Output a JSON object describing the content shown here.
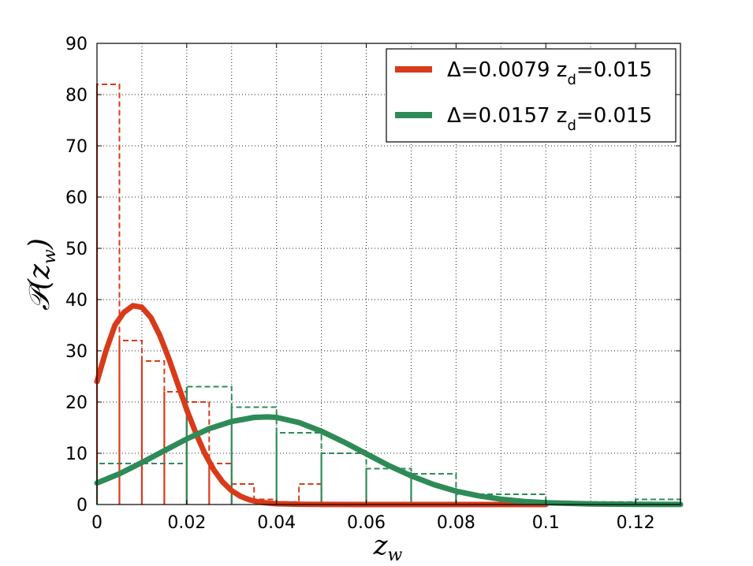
{
  "chart_data": {
    "type": "line",
    "title": "",
    "xlabel": "z",
    "xlabel_sub": "w",
    "ylabel_prefix": "𝒫(",
    "ylabel_var": "z",
    "ylabel_sub": "w",
    "ylabel_suffix": ")",
    "xlim": [
      0,
      0.13
    ],
    "ylim": [
      0,
      90
    ],
    "xticks": [
      0,
      0.02,
      0.04,
      0.06,
      0.08,
      0.1,
      0.12
    ],
    "xtick_labels": [
      "0",
      "0.02",
      "0.04",
      "0.06",
      "0.08",
      "0.1",
      "0.12"
    ],
    "yticks": [
      0,
      10,
      20,
      30,
      40,
      50,
      60,
      70,
      80,
      90
    ],
    "ytick_labels": [
      "0",
      "10",
      "20",
      "30",
      "40",
      "50",
      "60",
      "70",
      "80",
      "90"
    ],
    "grid": true,
    "legend_position": "top-right",
    "series": [
      {
        "name": "Δ=0.0079 z",
        "name_sub": "d",
        "name_suffix": "=0.015",
        "color": "#d83b1a",
        "curve": {
          "x": [
            0,
            0.002,
            0.004,
            0.006,
            0.008,
            0.01,
            0.012,
            0.014,
            0.016,
            0.018,
            0.02,
            0.022,
            0.024,
            0.026,
            0.028,
            0.03,
            0.032,
            0.034,
            0.036,
            0.038,
            0.04,
            0.045,
            0.05,
            0.06,
            0.07,
            0.08,
            0.09,
            0.1
          ],
          "y": [
            24,
            30,
            35,
            37.5,
            38.8,
            38.5,
            36.5,
            33,
            28.5,
            23.5,
            18.5,
            14,
            10,
            6.8,
            4.4,
            2.7,
            1.6,
            0.9,
            0.5,
            0.3,
            0.15,
            0.05,
            0.02,
            0,
            0,
            0,
            0,
            0
          ]
        },
        "hist_dashed": {
          "bin_width": 0.005,
          "bin_starts": [
            0,
            0.005,
            0.01,
            0.015,
            0.02,
            0.025,
            0.03,
            0.035,
            0.04,
            0.045
          ],
          "heights": [
            82,
            32,
            28,
            22,
            20,
            8,
            4,
            1,
            0.5,
            4
          ]
        },
        "hist_solid": {
          "bin_width": 0.005,
          "bin_starts": [
            0,
            0.005,
            0.01,
            0.015,
            0.02,
            0.025,
            0.03
          ],
          "heights": [
            82,
            32,
            28,
            22,
            20,
            8,
            4
          ]
        }
      },
      {
        "name": "Δ=0.0157 z",
        "name_sub": "d",
        "name_suffix": "=0.015",
        "color": "#2e8b57",
        "curve": {
          "x": [
            0,
            0.005,
            0.01,
            0.015,
            0.02,
            0.025,
            0.03,
            0.035,
            0.038,
            0.04,
            0.045,
            0.05,
            0.055,
            0.06,
            0.065,
            0.07,
            0.075,
            0.08,
            0.085,
            0.09,
            0.095,
            0.1,
            0.11,
            0.12,
            0.13
          ],
          "y": [
            4.2,
            6.0,
            8.2,
            10.5,
            12.8,
            14.8,
            16.2,
            17.0,
            17.1,
            17.0,
            16.0,
            14.3,
            12.2,
            9.9,
            7.6,
            5.6,
            3.9,
            2.6,
            1.7,
            1.05,
            0.6,
            0.35,
            0.12,
            0.04,
            0.01
          ]
        },
        "hist_dashed": {
          "bin_width": 0.01,
          "bin_starts": [
            0,
            0.01,
            0.02,
            0.03,
            0.04,
            0.05,
            0.06,
            0.07,
            0.08,
            0.09,
            0.1,
            0.11,
            0.12
          ],
          "heights": [
            8,
            8,
            23,
            19,
            14,
            10,
            7,
            6,
            2,
            2,
            0.5,
            0.5,
            1
          ]
        },
        "hist_solid": {
          "bin_width": 0.01,
          "bin_starts": [
            0.02,
            0.03,
            0.04,
            0.05,
            0.06,
            0.07,
            0.08
          ],
          "heights": [
            23,
            19,
            14,
            10,
            7,
            6,
            2
          ]
        }
      }
    ]
  }
}
